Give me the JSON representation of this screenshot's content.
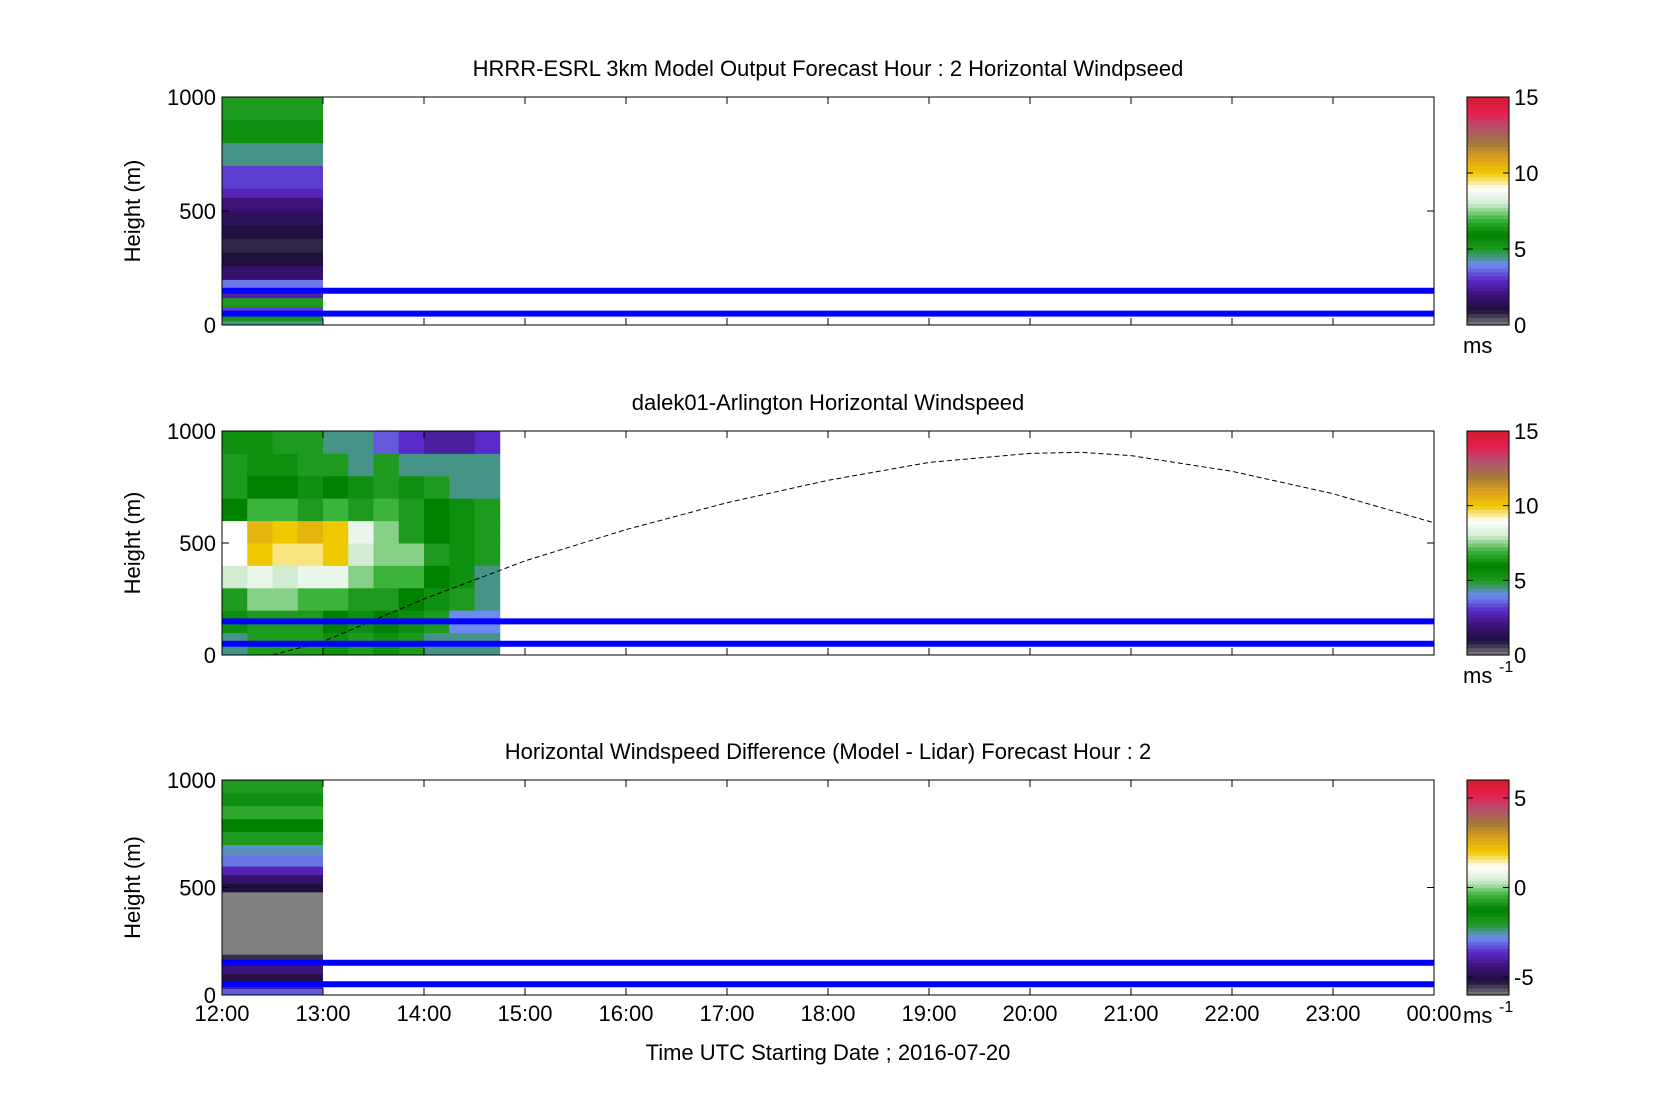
{
  "figure": {
    "xlabel": "Time UTC  Starting Date ; 2016-07-20",
    "x_ticks": [
      "12:00",
      "13:00",
      "14:00",
      "15:00",
      "16:00",
      "17:00",
      "18:00",
      "19:00",
      "20:00",
      "21:00",
      "22:00",
      "23:00",
      "00:00"
    ],
    "ylabel": "Height (m)",
    "colors": {
      "reference_lines": "#0000ff",
      "colormap": [
        "#7f7f7f",
        "#1e0f3c",
        "#3c1278",
        "#5a2ac8",
        "#6e8cf0",
        "#1e9b1e",
        "#008200",
        "#3cb43c",
        "#d2ecd2",
        "#ffffff",
        "#f0c800",
        "#dca01e",
        "#a0783c",
        "#b4506e",
        "#e61e50",
        "#d21e2d"
      ]
    }
  },
  "chart_data": [
    {
      "type": "heatmap",
      "title": "HRRR-ESRL 3km Model Output   Forecast Hour : 2 Horizontal Windpseed",
      "ylim": [
        0,
        1000
      ],
      "y_ticks": [
        "0",
        "500",
        "1000"
      ],
      "xlim": [
        12,
        24
      ],
      "colorbar": {
        "ticks": [
          "0",
          "5",
          "10",
          "15"
        ],
        "range": [
          0,
          15
        ],
        "unit": "ms"
      },
      "reference_lines_y": [
        50,
        150
      ],
      "columns": [
        {
          "x": [
            12,
            13
          ],
          "levels": [
            {
              "y": [
                0,
                20
              ],
              "v": 4.5
            },
            {
              "y": [
                20,
                40
              ],
              "v": 5.2
            },
            {
              "y": [
                40,
                60
              ],
              "v": 4.8
            },
            {
              "y": [
                60,
                80
              ],
              "v": 3.2
            },
            {
              "y": [
                80,
                120
              ],
              "v": 5.0
            },
            {
              "y": [
                120,
                160
              ],
              "v": 2.6
            },
            {
              "y": [
                160,
                200
              ],
              "v": 3.8
            },
            {
              "y": [
                200,
                260
              ],
              "v": 1.8
            },
            {
              "y": [
                260,
                320
              ],
              "v": 1.0
            },
            {
              "y": [
                320,
                380
              ],
              "v": 0.8
            },
            {
              "y": [
                380,
                440
              ],
              "v": 1.1
            },
            {
              "y": [
                440,
                500
              ],
              "v": 1.5
            },
            {
              "y": [
                500,
                560
              ],
              "v": 2.0
            },
            {
              "y": [
                560,
                600
              ],
              "v": 2.8
            },
            {
              "y": [
                600,
                700
              ],
              "v": 3.2
            },
            {
              "y": [
                700,
                800
              ],
              "v": 4.5
            },
            {
              "y": [
                800,
                900
              ],
              "v": 5.5
            },
            {
              "y": [
                900,
                1000
              ],
              "v": 5.0
            }
          ]
        }
      ]
    },
    {
      "type": "heatmap",
      "title": "dalek01-Arlington  Horizontal Windspeed",
      "ylim": [
        0,
        1000
      ],
      "y_ticks": [
        "0",
        "500",
        "1000"
      ],
      "xlim": [
        12,
        24
      ],
      "colorbar": {
        "ticks": [
          "0",
          "5",
          "10",
          "15"
        ],
        "range": [
          0,
          15
        ],
        "unit": "ms",
        "unit_exp": "-1"
      },
      "reference_lines_y": [
        50,
        150
      ],
      "dashed_curve": {
        "x": [
          12.5,
          13.0,
          14.0,
          15.0,
          16.0,
          17.0,
          18.0,
          19.0,
          20.0,
          20.5,
          21.0,
          22.0,
          23.0,
          24.0
        ],
        "y": [
          0,
          60,
          250,
          420,
          560,
          680,
          780,
          860,
          900,
          905,
          890,
          820,
          720,
          590
        ]
      },
      "grid": {
        "x_edges": [
          12.0,
          12.25,
          12.5,
          12.75,
          13.0,
          13.25,
          13.5,
          13.75,
          14.0,
          14.25,
          14.5,
          14.75
        ],
        "y_edges": [
          0,
          100,
          200,
          300,
          400,
          500,
          600,
          700,
          800,
          900,
          1000
        ],
        "values": [
          [
            4.5,
            6.5,
            6.5,
            6.5,
            5.5,
            5.0,
            5.5,
            5.0,
            4.5,
            4.5,
            4.5
          ],
          [
            5.5,
            6.5,
            6.5,
            6.5,
            6.0,
            5.5,
            6.0,
            5.5,
            5.0,
            4.0,
            4.0
          ],
          [
            6.5,
            7.5,
            7.5,
            7.0,
            7.0,
            6.5,
            6.5,
            6.0,
            5.5,
            5.0,
            4.5
          ],
          [
            8.0,
            8.5,
            8.0,
            8.5,
            8.5,
            7.5,
            7.0,
            7.0,
            6.0,
            5.5,
            4.5
          ],
          [
            9.0,
            10.0,
            9.5,
            9.5,
            10.0,
            8.0,
            7.5,
            7.5,
            6.5,
            5.5,
            5.0
          ],
          [
            9.0,
            10.5,
            10.0,
            10.5,
            10.0,
            8.5,
            7.5,
            6.5,
            6.0,
            5.5,
            5.0
          ],
          [
            6.0,
            7.0,
            7.0,
            6.5,
            7.0,
            6.5,
            7.0,
            6.5,
            6.0,
            5.5,
            5.0
          ],
          [
            5.0,
            6.0,
            6.0,
            5.5,
            6.0,
            5.5,
            5.0,
            5.5,
            5.0,
            4.5,
            4.5
          ],
          [
            5.0,
            5.5,
            5.5,
            5.0,
            5.0,
            4.5,
            5.0,
            4.5,
            4.5,
            4.5,
            4.5
          ],
          [
            5.5,
            5.5,
            5.0,
            5.0,
            4.5,
            4.5,
            3.5,
            3.0,
            2.5,
            2.5,
            3.0
          ]
        ]
      }
    },
    {
      "type": "heatmap",
      "title": "Horizontal Windspeed Difference (Model - Lidar) Forecast Hour : 2",
      "ylim": [
        0,
        1000
      ],
      "y_ticks": [
        "0",
        "500",
        "1000"
      ],
      "xlim": [
        12,
        24
      ],
      "colorbar": {
        "ticks": [
          "-5",
          "0",
          "5"
        ],
        "range": [
          -6,
          6
        ],
        "unit": "ms",
        "unit_exp": "-1"
      },
      "reference_lines_y": [
        50,
        150
      ],
      "columns": [
        {
          "x": [
            12,
            13
          ],
          "levels": [
            {
              "y": [
                0,
                30
              ],
              "v": -3.2
            },
            {
              "y": [
                30,
                60
              ],
              "v": -4.0
            },
            {
              "y": [
                60,
                100
              ],
              "v": -5.0
            },
            {
              "y": [
                100,
                140
              ],
              "v": -4.4
            },
            {
              "y": [
                140,
                190
              ],
              "v": -5.4
            },
            {
              "y": [
                190,
                480
              ],
              "v": -6.0
            },
            {
              "y": [
                480,
                520
              ],
              "v": -5.2
            },
            {
              "y": [
                520,
                560
              ],
              "v": -4.6
            },
            {
              "y": [
                560,
                600
              ],
              "v": -3.8
            },
            {
              "y": [
                600,
                650
              ],
              "v": -3.0
            },
            {
              "y": [
                650,
                700
              ],
              "v": -2.6
            },
            {
              "y": [
                700,
                760
              ],
              "v": -2.0
            },
            {
              "y": [
                760,
                820
              ],
              "v": -1.2
            },
            {
              "y": [
                820,
                880
              ],
              "v": -0.6
            },
            {
              "y": [
                880,
                940
              ],
              "v": -1.0
            },
            {
              "y": [
                940,
                1000
              ],
              "v": -2.0
            }
          ]
        }
      ]
    }
  ]
}
